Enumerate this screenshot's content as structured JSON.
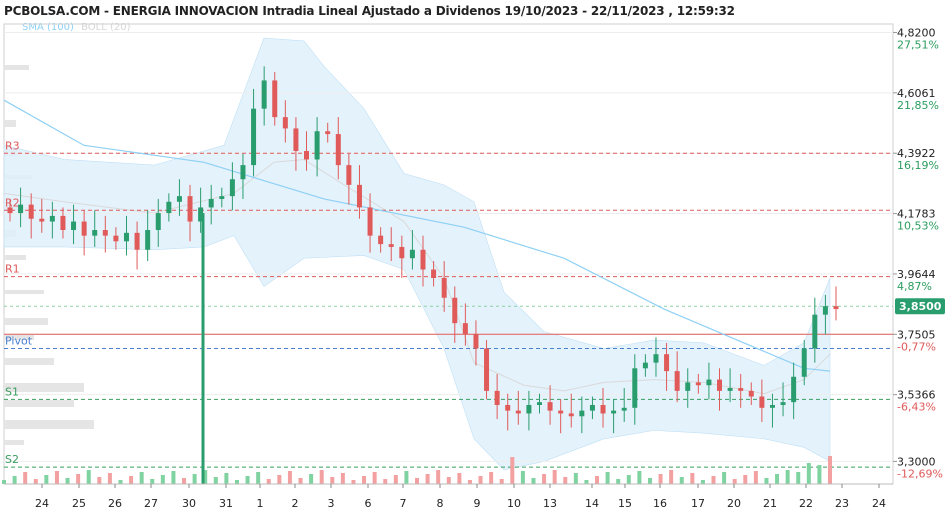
{
  "title": "PCBOLSA.COM - ENERGIA INNOVACION Intradia Lineal Ajustado a Dividenos 19/10/2023 - 22/11/2023 , 12:59:32",
  "legend": {
    "sma": "SMA (100)",
    "boll": "BOLL (20)"
  },
  "colors": {
    "up": "#2a9d6f",
    "down": "#e05a5a",
    "sma": "#8fd0f5",
    "band": "#dff0fb",
    "resistance": "#e05a5a",
    "pivot": "#4a7fd0",
    "support": "#3a9d5f"
  },
  "chart_data": {
    "type": "candlestick",
    "x_ticks": [
      "24",
      "25",
      "26",
      "27",
      "30",
      "31",
      "1",
      "2",
      "3",
      "6",
      "7",
      "8",
      "9",
      "10",
      "13",
      "14",
      "15",
      "16",
      "17",
      "20",
      "21",
      "22",
      "23",
      "24"
    ],
    "ylim": [
      3.22,
      4.85
    ],
    "price_labels": [
      {
        "price": "4,8200",
        "pct": "27,51%"
      },
      {
        "price": "4,6061",
        "pct": "21,85%"
      },
      {
        "price": "4,3922",
        "pct": "16,19%"
      },
      {
        "price": "4,1783",
        "pct": "10,53%"
      },
      {
        "price": "3,9644",
        "pct": "4,87%"
      },
      {
        "price": "3,7505",
        "pct": "-0,77%"
      },
      {
        "price": "3,5366",
        "pct": "-6,43%"
      },
      {
        "price": "3,3000",
        "pct": "-12,69%"
      }
    ],
    "levels": [
      {
        "name": "R3",
        "value": 4.392,
        "kind": "resistance"
      },
      {
        "name": "R2",
        "value": 4.19,
        "kind": "resistance"
      },
      {
        "name": "R1",
        "value": 3.955,
        "kind": "resistance"
      },
      {
        "name": "Pivot",
        "value": 3.7,
        "kind": "pivot"
      },
      {
        "name": "S1",
        "value": 3.52,
        "kind": "support"
      },
      {
        "name": "S2",
        "value": 3.28,
        "kind": "support"
      }
    ],
    "current_price": "3,8500",
    "current_value": 3.85,
    "reference_close": 3.7505,
    "close_path": [
      4.18,
      4.21,
      4.16,
      4.15,
      4.17,
      4.12,
      4.15,
      4.1,
      4.12,
      4.1,
      4.08,
      4.11,
      4.05,
      4.12,
      4.18,
      4.22,
      4.24,
      4.15,
      4.2,
      4.23,
      4.24,
      4.3,
      4.35,
      4.55,
      4.65,
      4.52,
      4.48,
      4.4,
      4.37,
      4.47,
      4.46,
      4.35,
      4.28,
      4.2,
      4.1,
      4.07,
      4.06,
      4.02,
      4.05,
      3.98,
      3.95,
      3.88,
      3.79,
      3.75,
      3.7,
      3.55,
      3.5,
      3.48,
      3.47,
      3.5,
      3.51,
      3.48,
      3.47,
      3.46,
      3.48,
      3.5,
      3.47,
      3.48,
      3.49,
      3.63,
      3.65,
      3.68,
      3.62,
      3.55,
      3.58,
      3.57,
      3.59,
      3.55,
      3.56,
      3.55,
      3.53,
      3.49,
      3.5,
      3.51,
      3.6,
      3.7,
      3.82,
      3.85,
      3.84
    ],
    "sma": [
      [
        0,
        4.58
      ],
      [
        80,
        4.42
      ],
      [
        200,
        4.36
      ],
      [
        320,
        4.23
      ],
      [
        460,
        4.13
      ],
      [
        560,
        4.02
      ],
      [
        660,
        3.84
      ],
      [
        740,
        3.72
      ],
      [
        800,
        3.63
      ],
      [
        826,
        3.62
      ]
    ],
    "boll_mid": [
      [
        0,
        4.25
      ],
      [
        60,
        4.22
      ],
      [
        150,
        4.18
      ],
      [
        230,
        4.25
      ],
      [
        270,
        4.36
      ],
      [
        300,
        4.37
      ],
      [
        340,
        4.28
      ],
      [
        400,
        4.15
      ],
      [
        440,
        3.95
      ],
      [
        470,
        3.65
      ],
      [
        520,
        3.57
      ],
      [
        560,
        3.55
      ],
      [
        600,
        3.58
      ],
      [
        650,
        3.59
      ],
      [
        700,
        3.58
      ],
      [
        760,
        3.54
      ],
      [
        800,
        3.59
      ],
      [
        826,
        3.68
      ]
    ],
    "boll_upper": [
      [
        0,
        4.42
      ],
      [
        60,
        4.37
      ],
      [
        150,
        4.35
      ],
      [
        220,
        4.42
      ],
      [
        260,
        4.8
      ],
      [
        300,
        4.79
      ],
      [
        320,
        4.7
      ],
      [
        360,
        4.55
      ],
      [
        400,
        4.32
      ],
      [
        440,
        4.28
      ],
      [
        470,
        4.22
      ],
      [
        500,
        3.9
      ],
      [
        540,
        3.76
      ],
      [
        600,
        3.7
      ],
      [
        650,
        3.73
      ],
      [
        700,
        3.72
      ],
      [
        760,
        3.64
      ],
      [
        800,
        3.72
      ],
      [
        826,
        3.95
      ]
    ],
    "boll_lower": [
      [
        0,
        4.06
      ],
      [
        60,
        4.06
      ],
      [
        150,
        4.05
      ],
      [
        200,
        4.06
      ],
      [
        230,
        4.1
      ],
      [
        260,
        3.92
      ],
      [
        300,
        4.02
      ],
      [
        360,
        4.03
      ],
      [
        400,
        3.98
      ],
      [
        440,
        3.7
      ],
      [
        470,
        3.38
      ],
      [
        500,
        3.27
      ],
      [
        540,
        3.3
      ],
      [
        600,
        3.38
      ],
      [
        650,
        3.41
      ],
      [
        700,
        3.4
      ],
      [
        760,
        3.38
      ],
      [
        800,
        3.35
      ],
      [
        826,
        3.3
      ]
    ]
  }
}
